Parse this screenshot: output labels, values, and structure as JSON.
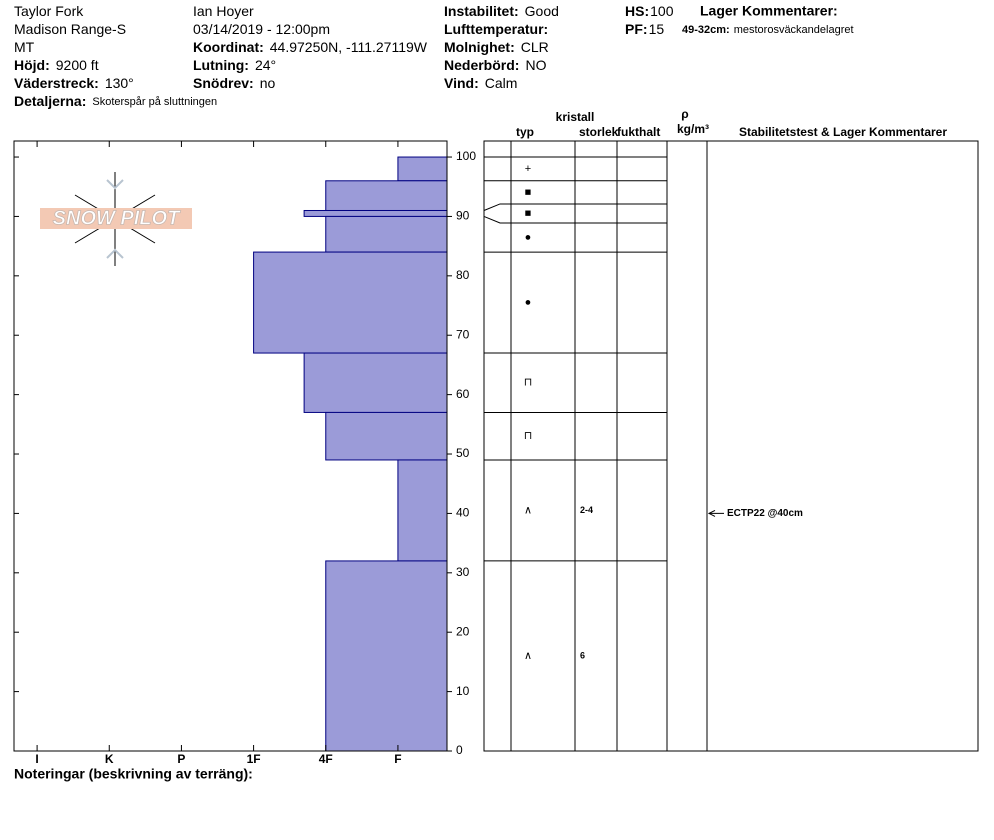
{
  "header": {
    "columns": [
      [
        {
          "value": "Taylor Fork"
        },
        {
          "value": "Madison Range-S"
        },
        {
          "value": "MT"
        },
        {
          "label": "Höjd:",
          "value": "9200 ft"
        },
        {
          "label": "Väderstreck:",
          "value": "130°"
        }
      ],
      [
        {
          "value": "Ian Hoyer"
        },
        {
          "value": "03/14/2019 - 12:00pm"
        },
        {
          "label": "Koordinat:",
          "value": "44.97250N, -111.27119W"
        },
        {
          "label": "Lutning:",
          "value": "24°"
        },
        {
          "label": "Snödrev:",
          "value": "no"
        }
      ],
      [
        {
          "label": "Instabilitet:",
          "value": "Good"
        },
        {
          "label": "Lufttemperatur:"
        },
        {
          "label": "Molnighet:",
          "value": "CLR"
        },
        {
          "label": "Nederbörd:",
          "value": "NO"
        },
        {
          "label": "Vind:",
          "value": "Calm"
        }
      ],
      [
        {
          "label": "HS:",
          "value": "100"
        },
        {
          "label": "PF:",
          "value": "15"
        }
      ]
    ],
    "details": {
      "label": "Detaljerna:",
      "value": "Skoterspår på sluttningen"
    },
    "layer_comments": {
      "title": "Lager Kommentarer:",
      "items": [
        {
          "label": "49-32cm:",
          "value": "mestorosväckandelagret"
        }
      ]
    }
  },
  "chart_data": {
    "type": "snowprofile",
    "logo": "SNOW PILOT",
    "ylim": [
      0,
      102.7
    ],
    "yticks": [
      0,
      10,
      20,
      30,
      40,
      50,
      60,
      70,
      80,
      90,
      100
    ],
    "xlim": [
      6.32,
      0.32
    ],
    "xticks": [
      {
        "value": 6,
        "label": "I"
      },
      {
        "value": 5,
        "label": "K"
      },
      {
        "value": 4,
        "label": "P"
      },
      {
        "value": 3,
        "label": "1F"
      },
      {
        "value": 2,
        "label": "4F"
      },
      {
        "value": 1,
        "label": "F"
      }
    ],
    "bar_color": "#9b9bd8",
    "bar_edge": "#000080",
    "columns": {
      "type": "typ",
      "crystal": "kristall",
      "size": "storlek",
      "moisture": "fukthalt",
      "rho": "ρ",
      "density": "kg/m³",
      "comments": "Stabilitetstest & Lager Kommentarer"
    },
    "layers": [
      {
        "top": 100,
        "bottom": 96,
        "hardness": 1,
        "grain": "+"
      },
      {
        "top": 96,
        "bottom": 91,
        "hardness": 2,
        "grain": "■"
      },
      {
        "top": 91,
        "bottom": 90,
        "hardness": 2.3,
        "grain": "■"
      },
      {
        "top": 90,
        "bottom": 84,
        "hardness": 2,
        "grain": "●"
      },
      {
        "top": 84,
        "bottom": 67,
        "hardness": 3,
        "grain": "●"
      },
      {
        "top": 67,
        "bottom": 57,
        "hardness": 2.3,
        "grain": "⊓"
      },
      {
        "top": 57,
        "bottom": 49,
        "hardness": 2,
        "grain": "⊓"
      },
      {
        "top": 49,
        "bottom": 32,
        "hardness": 1,
        "grain": "∧",
        "size": "2-4"
      },
      {
        "top": 32,
        "bottom": 0,
        "hardness": 2,
        "grain": "∧",
        "size": "6"
      }
    ],
    "tests": [
      {
        "depth": 40,
        "label": "ECTP22 @40cm"
      }
    ],
    "notes": "Noteringar (beskrivning av terräng):"
  }
}
